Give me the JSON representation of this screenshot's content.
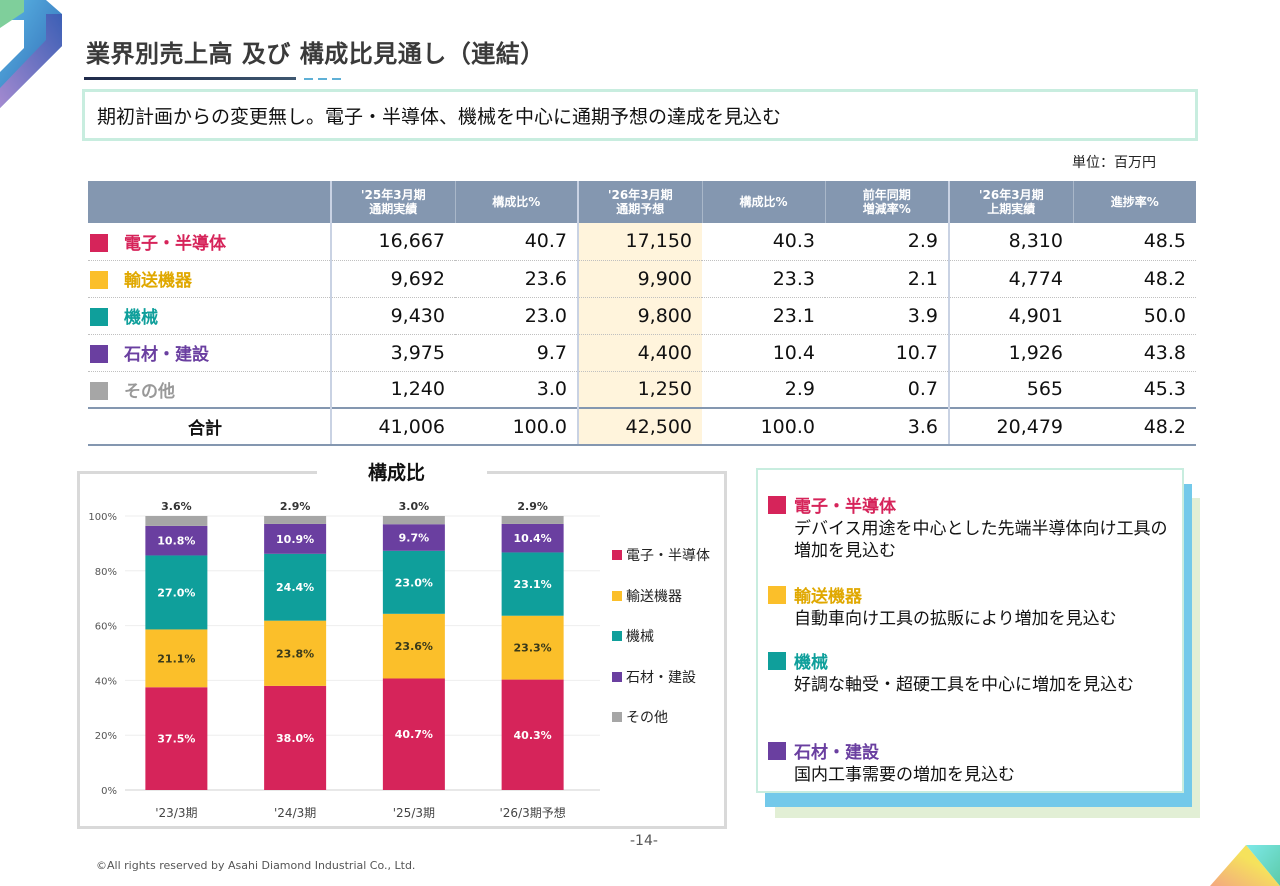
{
  "page": {
    "title": "業界別売上高 及び 構成比見通し（連結）",
    "summary": "期初計画からの変更無し。電子・半導体、機械を中心に通期予想の達成を見込む",
    "unit": "単位：百万円",
    "page_number": "-14-",
    "copyright": "©All rights reserved by Asahi Diamond Industrial Co., Ltd."
  },
  "colors": {
    "electronics": "#d6245a",
    "transport": "#fbbf2a",
    "machinery": "#0f9f9b",
    "stone": "#6a3fa0",
    "other": "#a6a6a6",
    "electronics_text": "#d6245a",
    "transport_text": "#e0a800",
    "machinery_text": "#0f9f9b",
    "stone_text": "#6a3fa0",
    "other_text": "#999999"
  },
  "table": {
    "headers": [
      "",
      "'25年3月期\n通期実績",
      "構成比%",
      "'26年3月期\n通期予想",
      "構成比%",
      "前年同期\n増減率%",
      "'26年3月期\n上期実績",
      "進捗率%"
    ],
    "rows": [
      {
        "category": "電子・半導体",
        "color_key": "electronics",
        "values": [
          "16,667",
          "40.7",
          "17,150",
          "40.3",
          "2.9",
          "8,310",
          "48.5"
        ]
      },
      {
        "category": "輸送機器",
        "color_key": "transport",
        "values": [
          "9,692",
          "23.6",
          "9,900",
          "23.3",
          "2.1",
          "4,774",
          "48.2"
        ]
      },
      {
        "category": "機械",
        "color_key": "machinery",
        "values": [
          "9,430",
          "23.0",
          "9,800",
          "23.1",
          "3.9",
          "4,901",
          "50.0"
        ]
      },
      {
        "category": "石材・建設",
        "color_key": "stone",
        "values": [
          "3,975",
          "9.7",
          "4,400",
          "10.4",
          "10.7",
          "1,926",
          "43.8"
        ]
      },
      {
        "category": "その他",
        "color_key": "other",
        "values": [
          "1,240",
          "3.0",
          "1,250",
          "2.9",
          "0.7",
          "565",
          "45.3"
        ]
      }
    ],
    "total": {
      "category": "合計",
      "values": [
        "41,006",
        "100.0",
        "42,500",
        "100.0",
        "3.6",
        "20,479",
        "48.2"
      ]
    }
  },
  "chart_data": {
    "type": "bar",
    "stacked": true,
    "title": "構成比",
    "xlabel": "",
    "ylabel": "",
    "ylim": [
      0,
      100
    ],
    "yticks": [
      "0%",
      "20%",
      "40%",
      "60%",
      "80%",
      "100%"
    ],
    "grid": true,
    "legend_position": "right",
    "categories": [
      "'23/3期",
      "'24/3期",
      "'25/3期",
      "'26/3期予想"
    ],
    "series": [
      {
        "name": "電子・半導体",
        "color_key": "electronics",
        "label_color": "#ffffff",
        "values": [
          37.5,
          38.0,
          40.7,
          40.3
        ]
      },
      {
        "name": "輸送機器",
        "color_key": "transport",
        "label_color": "#3a3a1a",
        "values": [
          21.1,
          23.8,
          23.6,
          23.3
        ]
      },
      {
        "name": "機械",
        "color_key": "machinery",
        "label_color": "#ffffff",
        "values": [
          27.0,
          24.4,
          23.0,
          23.1
        ]
      },
      {
        "name": "石材・建設",
        "color_key": "stone",
        "label_color": "#ffffff",
        "values": [
          10.8,
          10.9,
          9.7,
          10.4
        ]
      },
      {
        "name": "その他",
        "color_key": "other",
        "label_color": "#333333",
        "values": [
          3.6,
          2.9,
          3.0,
          2.9
        ]
      }
    ]
  },
  "comments": [
    {
      "category": "電子・半導体",
      "color_key": "electronics",
      "text": "デバイス用途を中心とした先端半導体向け工具の増加を見込む"
    },
    {
      "category": "輸送機器",
      "color_key": "transport",
      "text": "自動車向け工具の拡販により増加を見込む"
    },
    {
      "category": "機械",
      "color_key": "machinery",
      "text": "好調な軸受・超硬工具を中心に増加を見込む"
    },
    {
      "category": "石材・建設",
      "color_key": "stone",
      "text": "国内工事需要の増加を見込む"
    }
  ]
}
